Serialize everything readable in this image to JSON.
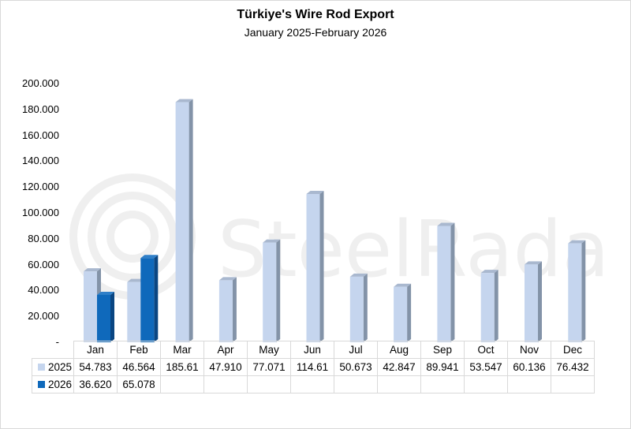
{
  "header": {
    "title": "Türkiye's Wire Rod Export",
    "subtitle": "January 2025-February 2026"
  },
  "watermark": {
    "text": "SteelRadar"
  },
  "colors": {
    "series_2025_front": "#c5d5ee",
    "series_2025_side": "#8393a8",
    "series_2026_front": "#0f69bb",
    "series_2026_side": "#0a4682"
  },
  "axis": {
    "y_ticks": [
      "200.000",
      "180.000",
      "160.000",
      "140.000",
      "120.000",
      "100.000",
      "80.000",
      "60.000",
      "40.000",
      "20.000",
      "-"
    ]
  },
  "table": {
    "months": [
      "Jan",
      "Feb",
      "Mar",
      "Apr",
      "May",
      "Jun",
      "Jul",
      "Aug",
      "Sep",
      "Oct",
      "Nov",
      "Dec"
    ],
    "rows": [
      {
        "label": "2025",
        "values": [
          "54.783",
          "46.564",
          "185.61",
          "47.910",
          "77.071",
          "114.61",
          "50.673",
          "42.847",
          "89.941",
          "53.547",
          "60.136",
          "76.432"
        ]
      },
      {
        "label": "2026",
        "values": [
          "36.620",
          "65.078",
          "",
          "",
          "",
          "",
          "",
          "",
          "",
          "",
          "",
          ""
        ]
      }
    ]
  },
  "chart_data": {
    "type": "bar",
    "title": "Türkiye's Wire Rod Export",
    "subtitle": "January 2025-February 2026",
    "categories": [
      "Jan",
      "Feb",
      "Mar",
      "Apr",
      "May",
      "Jun",
      "Jul",
      "Aug",
      "Sep",
      "Oct",
      "Nov",
      "Dec"
    ],
    "series": [
      {
        "name": "2025",
        "values": [
          54783,
          46564,
          185610,
          47910,
          77071,
          114610,
          50673,
          42847,
          89941,
          53547,
          60136,
          76432
        ]
      },
      {
        "name": "2026",
        "values": [
          36620,
          65078,
          null,
          null,
          null,
          null,
          null,
          null,
          null,
          null,
          null,
          null
        ]
      }
    ],
    "xlabel": "",
    "ylabel": "",
    "ylim": [
      0,
      200000
    ],
    "y_tick_step": 20000,
    "grid": false,
    "legend_position": "data-table",
    "style": "3d-clustered-column with data table"
  }
}
